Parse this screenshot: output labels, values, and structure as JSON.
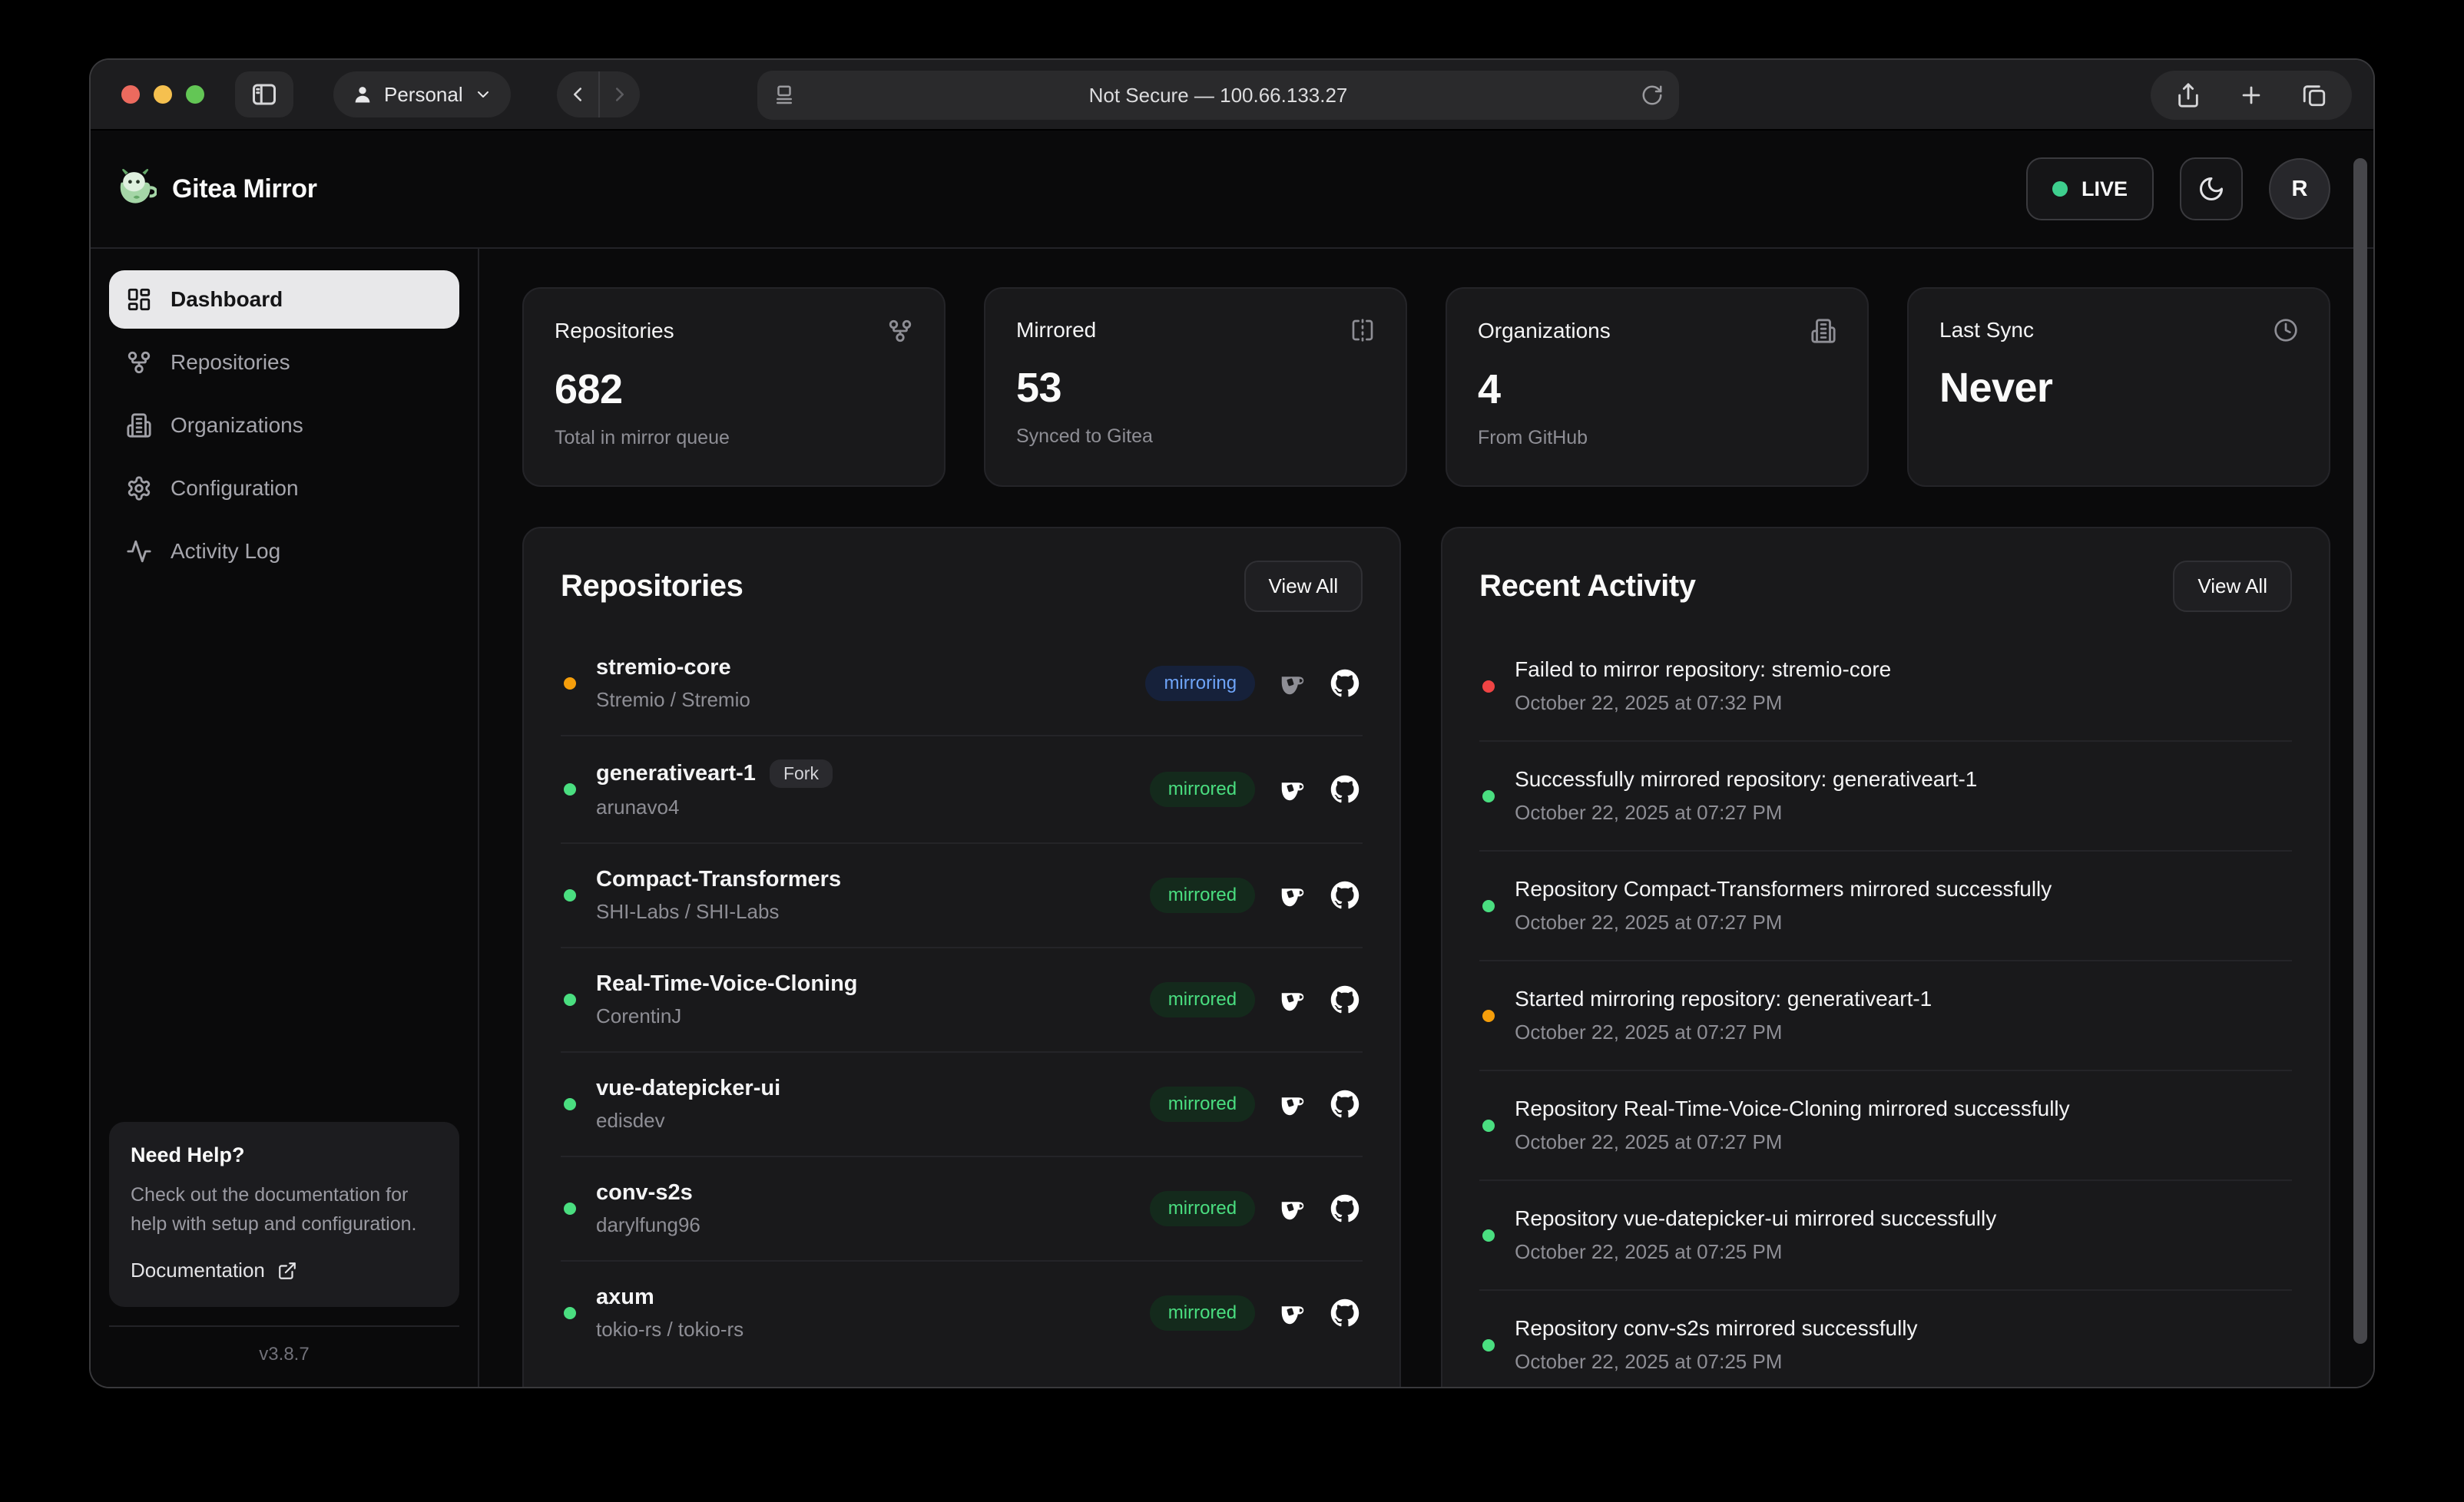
{
  "browser": {
    "profile_label": "Personal",
    "url_text": "Not Secure — 100.66.133.27"
  },
  "header": {
    "app_title": "Gitea Mirror",
    "live_label": "LIVE",
    "avatar_initial": "R"
  },
  "sidebar": {
    "items": [
      {
        "label": "Dashboard",
        "icon": "dashboard-icon",
        "active": true
      },
      {
        "label": "Repositories",
        "icon": "git-fork-icon",
        "active": false
      },
      {
        "label": "Organizations",
        "icon": "building-icon",
        "active": false
      },
      {
        "label": "Configuration",
        "icon": "gear-icon",
        "active": false
      },
      {
        "label": "Activity Log",
        "icon": "activity-icon",
        "active": false
      }
    ],
    "help": {
      "title": "Need Help?",
      "body": "Check out the documentation for help with setup and configuration.",
      "link_label": "Documentation"
    },
    "version": "v3.8.7"
  },
  "stats": [
    {
      "label": "Repositories",
      "icon": "git-fork-icon",
      "value": "682",
      "subtitle": "Total in mirror queue"
    },
    {
      "label": "Mirrored",
      "icon": "flip-horizontal-icon",
      "value": "53",
      "subtitle": "Synced to Gitea"
    },
    {
      "label": "Organizations",
      "icon": "building-icon",
      "value": "4",
      "subtitle": "From GitHub"
    },
    {
      "label": "Last Sync",
      "icon": "clock-icon",
      "value": "Never",
      "subtitle": ""
    }
  ],
  "repositories": {
    "title": "Repositories",
    "view_all_label": "View All",
    "fork_badge_label": "Fork",
    "items": [
      {
        "name": "stremio-core",
        "owner": "Stremio / Stremio",
        "status": "mirroring",
        "dot": "amber",
        "fork": false,
        "gitea_active": false
      },
      {
        "name": "generativeart-1",
        "owner": "arunavo4",
        "status": "mirrored",
        "dot": "green",
        "fork": true,
        "gitea_active": true
      },
      {
        "name": "Compact-Transformers",
        "owner": "SHI-Labs / SHI-Labs",
        "status": "mirrored",
        "dot": "green",
        "fork": false,
        "gitea_active": true
      },
      {
        "name": "Real-Time-Voice-Cloning",
        "owner": "CorentinJ",
        "status": "mirrored",
        "dot": "green",
        "fork": false,
        "gitea_active": true
      },
      {
        "name": "vue-datepicker-ui",
        "owner": "edisdev",
        "status": "mirrored",
        "dot": "green",
        "fork": false,
        "gitea_active": true
      },
      {
        "name": "conv-s2s",
        "owner": "darylfung96",
        "status": "mirrored",
        "dot": "green",
        "fork": false,
        "gitea_active": true
      },
      {
        "name": "axum",
        "owner": "tokio-rs / tokio-rs",
        "status": "mirrored",
        "dot": "green",
        "fork": false,
        "gitea_active": true
      }
    ]
  },
  "activity": {
    "title": "Recent Activity",
    "view_all_label": "View All",
    "items": [
      {
        "message": "Failed to mirror repository: stremio-core",
        "timestamp": "October 22, 2025 at 07:32 PM",
        "dot": "red"
      },
      {
        "message": "Successfully mirrored repository: generativeart-1",
        "timestamp": "October 22, 2025 at 07:27 PM",
        "dot": "green"
      },
      {
        "message": "Repository Compact-Transformers mirrored successfully",
        "timestamp": "October 22, 2025 at 07:27 PM",
        "dot": "green"
      },
      {
        "message": "Started mirroring repository: generativeart-1",
        "timestamp": "October 22, 2025 at 07:27 PM",
        "dot": "amber"
      },
      {
        "message": "Repository Real-Time-Voice-Cloning mirrored successfully",
        "timestamp": "October 22, 2025 at 07:27 PM",
        "dot": "green"
      },
      {
        "message": "Repository vue-datepicker-ui mirrored successfully",
        "timestamp": "October 22, 2025 at 07:25 PM",
        "dot": "green"
      },
      {
        "message": "Repository conv-s2s mirrored successfully",
        "timestamp": "October 22, 2025 at 07:25 PM",
        "dot": "green"
      }
    ]
  },
  "colors": {
    "success": "#4ade80",
    "warning": "#f59e0b",
    "error": "#ef4444",
    "info": "#6ea4f8",
    "live": "#3ecf8e"
  }
}
